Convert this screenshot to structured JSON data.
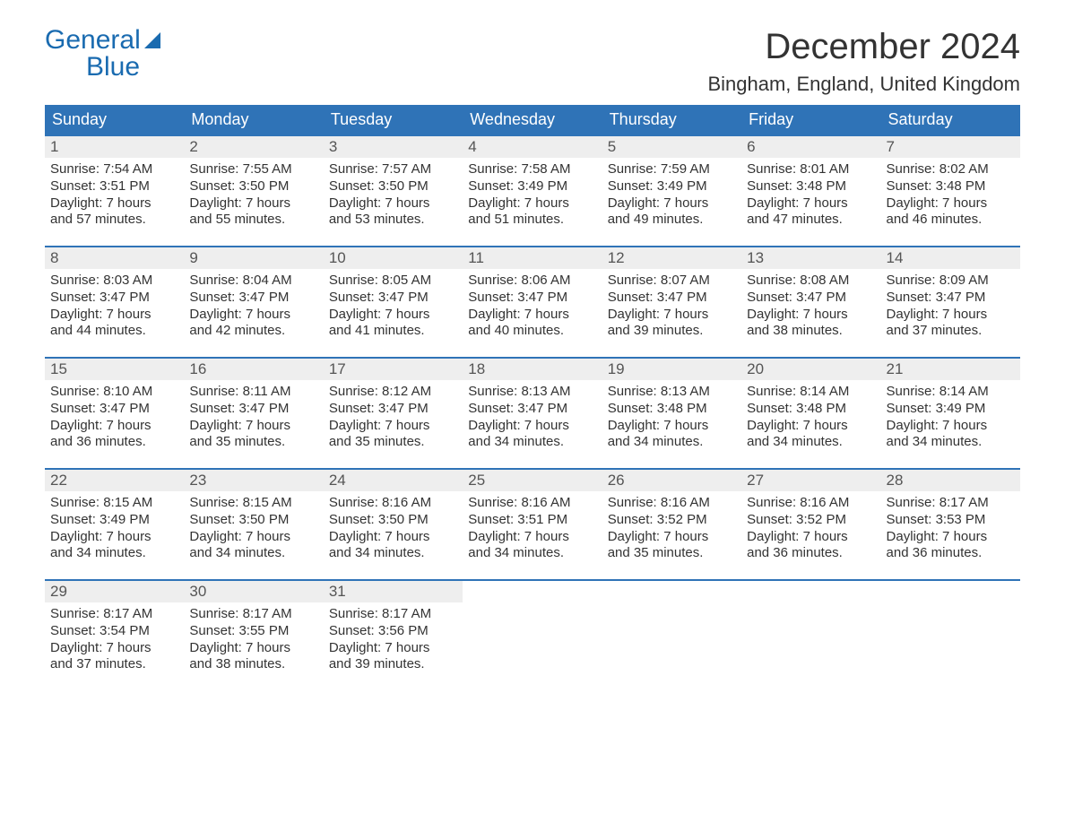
{
  "logo": {
    "line1": "General",
    "line2": "Blue"
  },
  "title": "December 2024",
  "location": "Bingham, England, United Kingdom",
  "colors": {
    "header_bg": "#2f73b7",
    "header_text": "#ffffff",
    "daynum_bg": "#eeeeee",
    "brand": "#1a6bb0",
    "text": "#333333"
  },
  "dow": [
    "Sunday",
    "Monday",
    "Tuesday",
    "Wednesday",
    "Thursday",
    "Friday",
    "Saturday"
  ],
  "days": [
    {
      "n": "1",
      "sr": "7:54 AM",
      "ss": "3:51 PM",
      "dh": "7",
      "dm": "57"
    },
    {
      "n": "2",
      "sr": "7:55 AM",
      "ss": "3:50 PM",
      "dh": "7",
      "dm": "55"
    },
    {
      "n": "3",
      "sr": "7:57 AM",
      "ss": "3:50 PM",
      "dh": "7",
      "dm": "53"
    },
    {
      "n": "4",
      "sr": "7:58 AM",
      "ss": "3:49 PM",
      "dh": "7",
      "dm": "51"
    },
    {
      "n": "5",
      "sr": "7:59 AM",
      "ss": "3:49 PM",
      "dh": "7",
      "dm": "49"
    },
    {
      "n": "6",
      "sr": "8:01 AM",
      "ss": "3:48 PM",
      "dh": "7",
      "dm": "47"
    },
    {
      "n": "7",
      "sr": "8:02 AM",
      "ss": "3:48 PM",
      "dh": "7",
      "dm": "46"
    },
    {
      "n": "8",
      "sr": "8:03 AM",
      "ss": "3:47 PM",
      "dh": "7",
      "dm": "44"
    },
    {
      "n": "9",
      "sr": "8:04 AM",
      "ss": "3:47 PM",
      "dh": "7",
      "dm": "42"
    },
    {
      "n": "10",
      "sr": "8:05 AM",
      "ss": "3:47 PM",
      "dh": "7",
      "dm": "41"
    },
    {
      "n": "11",
      "sr": "8:06 AM",
      "ss": "3:47 PM",
      "dh": "7",
      "dm": "40"
    },
    {
      "n": "12",
      "sr": "8:07 AM",
      "ss": "3:47 PM",
      "dh": "7",
      "dm": "39"
    },
    {
      "n": "13",
      "sr": "8:08 AM",
      "ss": "3:47 PM",
      "dh": "7",
      "dm": "38"
    },
    {
      "n": "14",
      "sr": "8:09 AM",
      "ss": "3:47 PM",
      "dh": "7",
      "dm": "37"
    },
    {
      "n": "15",
      "sr": "8:10 AM",
      "ss": "3:47 PM",
      "dh": "7",
      "dm": "36"
    },
    {
      "n": "16",
      "sr": "8:11 AM",
      "ss": "3:47 PM",
      "dh": "7",
      "dm": "35"
    },
    {
      "n": "17",
      "sr": "8:12 AM",
      "ss": "3:47 PM",
      "dh": "7",
      "dm": "35"
    },
    {
      "n": "18",
      "sr": "8:13 AM",
      "ss": "3:47 PM",
      "dh": "7",
      "dm": "34"
    },
    {
      "n": "19",
      "sr": "8:13 AM",
      "ss": "3:48 PM",
      "dh": "7",
      "dm": "34"
    },
    {
      "n": "20",
      "sr": "8:14 AM",
      "ss": "3:48 PM",
      "dh": "7",
      "dm": "34"
    },
    {
      "n": "21",
      "sr": "8:14 AM",
      "ss": "3:49 PM",
      "dh": "7",
      "dm": "34"
    },
    {
      "n": "22",
      "sr": "8:15 AM",
      "ss": "3:49 PM",
      "dh": "7",
      "dm": "34"
    },
    {
      "n": "23",
      "sr": "8:15 AM",
      "ss": "3:50 PM",
      "dh": "7",
      "dm": "34"
    },
    {
      "n": "24",
      "sr": "8:16 AM",
      "ss": "3:50 PM",
      "dh": "7",
      "dm": "34"
    },
    {
      "n": "25",
      "sr": "8:16 AM",
      "ss": "3:51 PM",
      "dh": "7",
      "dm": "34"
    },
    {
      "n": "26",
      "sr": "8:16 AM",
      "ss": "3:52 PM",
      "dh": "7",
      "dm": "35"
    },
    {
      "n": "27",
      "sr": "8:16 AM",
      "ss": "3:52 PM",
      "dh": "7",
      "dm": "36"
    },
    {
      "n": "28",
      "sr": "8:17 AM",
      "ss": "3:53 PM",
      "dh": "7",
      "dm": "36"
    },
    {
      "n": "29",
      "sr": "8:17 AM",
      "ss": "3:54 PM",
      "dh": "7",
      "dm": "37"
    },
    {
      "n": "30",
      "sr": "8:17 AM",
      "ss": "3:55 PM",
      "dh": "7",
      "dm": "38"
    },
    {
      "n": "31",
      "sr": "8:17 AM",
      "ss": "3:56 PM",
      "dh": "7",
      "dm": "39"
    }
  ],
  "labels": {
    "sunrise": "Sunrise:",
    "sunset": "Sunset:",
    "daylight_prefix": "Daylight:",
    "hours_word": "hours",
    "and_word": "and",
    "minutes_word": "minutes."
  },
  "layout": {
    "start_offset": 0,
    "total_cells": 35
  }
}
